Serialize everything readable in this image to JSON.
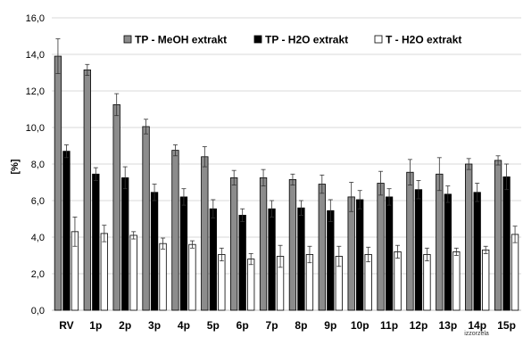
{
  "chart_data": {
    "type": "bar",
    "ylabel": "[%]",
    "ylim": [
      0,
      16
    ],
    "y_ticks": [
      "0,0",
      "2,0",
      "4,0",
      "6,0",
      "8,0",
      "10,0",
      "12,0",
      "14,0",
      "16,0"
    ],
    "grid": true,
    "legend_position": "top",
    "categories": [
      "RV",
      "1p",
      "2p",
      "3p",
      "4p",
      "5p",
      "6p",
      "7p",
      "8p",
      "9p",
      "10p",
      "11p",
      "12p",
      "13p",
      "14p",
      "15p"
    ],
    "series": [
      {
        "name": "TP - MeOH extrakt",
        "color": "#8c8c8c",
        "values": [
          13.9,
          13.15,
          11.25,
          10.05,
          8.75,
          8.4,
          7.25,
          7.25,
          7.15,
          6.9,
          6.2,
          6.95,
          7.55,
          7.45,
          8.0,
          8.2
        ],
        "errors": [
          0.95,
          0.3,
          0.6,
          0.4,
          0.3,
          0.55,
          0.4,
          0.45,
          0.3,
          0.5,
          0.8,
          0.65,
          0.7,
          0.9,
          0.3,
          0.25
        ]
      },
      {
        "name": "TP - H2O extrakt",
        "color": "#000000",
        "values": [
          8.7,
          7.45,
          7.25,
          6.45,
          6.2,
          5.55,
          5.2,
          5.55,
          5.6,
          5.45,
          6.05,
          6.2,
          6.6,
          6.35,
          6.45,
          7.3
        ],
        "errors": [
          0.35,
          0.35,
          0.6,
          0.45,
          0.45,
          0.5,
          0.35,
          0.45,
          0.4,
          0.6,
          0.5,
          0.45,
          0.5,
          0.45,
          0.5,
          0.7
        ]
      },
      {
        "name": "T - H2O extrakt",
        "color": "#ffffff",
        "values": [
          4.3,
          4.2,
          4.1,
          3.65,
          3.6,
          3.05,
          2.8,
          2.95,
          3.05,
          2.95,
          3.05,
          3.2,
          3.05,
          3.2,
          3.3,
          4.15
        ],
        "errors": [
          0.8,
          0.45,
          0.2,
          0.3,
          0.2,
          0.35,
          0.3,
          0.6,
          0.45,
          0.55,
          0.4,
          0.35,
          0.35,
          0.2,
          0.2,
          0.45
        ]
      }
    ],
    "annotation": "izzorzela"
  }
}
